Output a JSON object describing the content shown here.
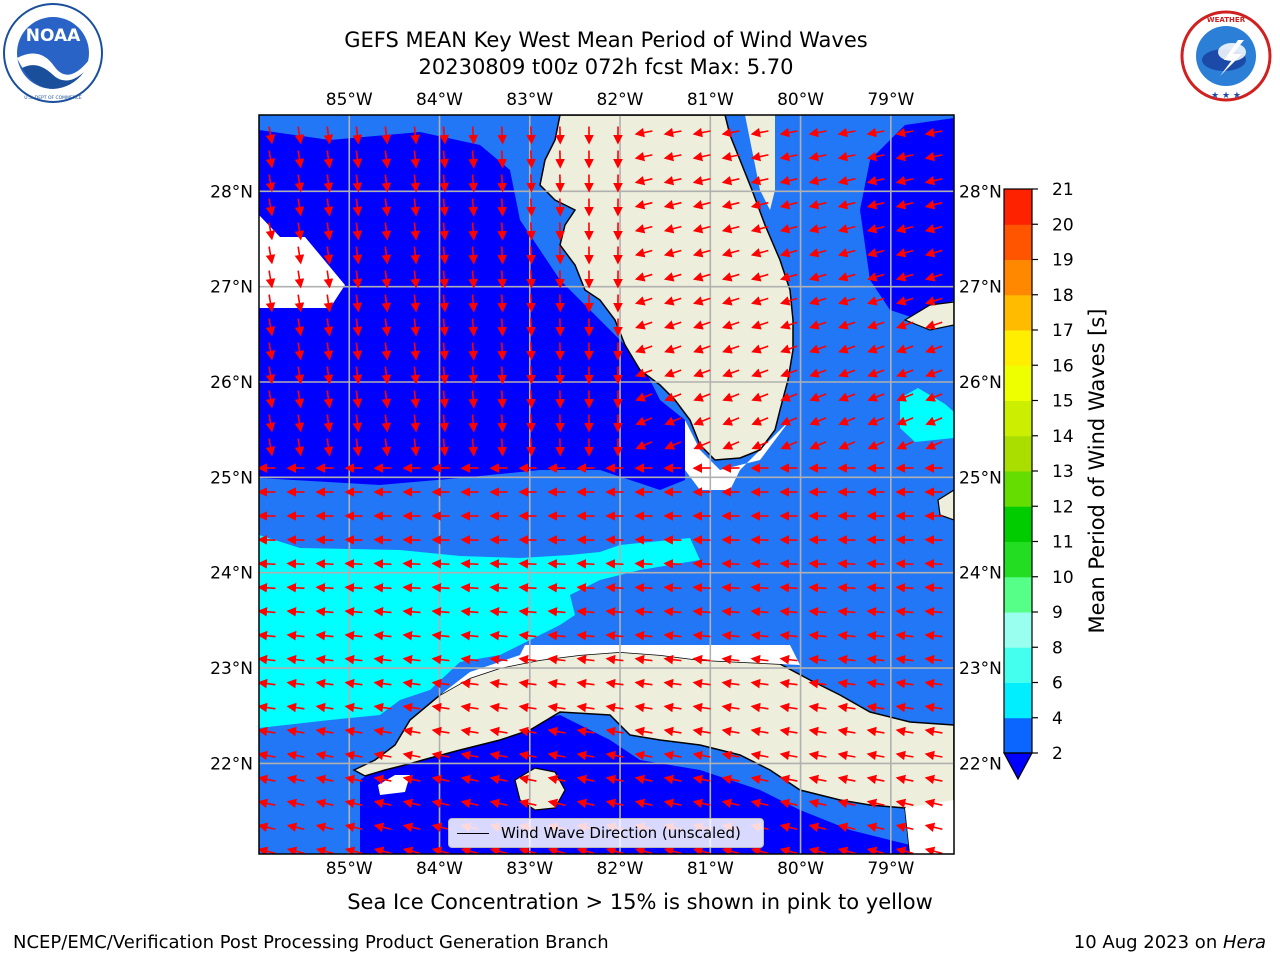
{
  "title": {
    "line1": "GEFS MEAN Key West Mean Period of Wind Waves",
    "line2": "20230809 t00z 072h fcst   Max: 5.70"
  },
  "logos": {
    "left": {
      "name": "NOAA",
      "ring_text": "NATIONAL OCEANIC AND ATMOSPHERIC ADMINISTRATION · U.S. DEPARTMENT OF COMMERCE"
    },
    "right": {
      "name": "NATIONAL WEATHER SERVICE"
    }
  },
  "map": {
    "lon_labels": [
      "85°W",
      "84°W",
      "83°W",
      "82°W",
      "81°W",
      "80°W",
      "79°W"
    ],
    "lat_labels": [
      "28°N",
      "27°N",
      "26°N",
      "25°N",
      "24°N",
      "23°N",
      "22°N"
    ],
    "lon_range": [
      -86.0,
      -78.3
    ],
    "lat_range": [
      21.05,
      28.8
    ],
    "colors": {
      "land": "#eeeedd",
      "blue_dark": "#0000ff",
      "blue_mid": "#2277f7",
      "cyan": "#00ffff",
      "grid": "#b0b0b0",
      "arrow": "#ff0000"
    },
    "legend_label": "Wind Wave Direction (unscaled)"
  },
  "colorbar": {
    "label": "Mean Period of Wind Waves [s]",
    "ticks": [
      "2",
      "4",
      "6",
      "8",
      "9",
      "10",
      "11",
      "12",
      "13",
      "14",
      "15",
      "16",
      "17",
      "18",
      "19",
      "20",
      "21"
    ],
    "colors": [
      "#0a66ff",
      "#00eeff",
      "#44ffee",
      "#99ffee",
      "#55ff88",
      "#22dd22",
      "#00cc00",
      "#66dd00",
      "#aadd00",
      "#ccee00",
      "#eeff00",
      "#ffee00",
      "#ffbb00",
      "#ff8800",
      "#ff5500",
      "#ff2200"
    ]
  },
  "chart_data": {
    "type": "heatmap",
    "title": "GEFS MEAN Key West Mean Period of Wind Waves",
    "subtitle": "20230809 t00z 072h fcst   Max: 5.70",
    "colorbar_range": [
      2,
      21
    ],
    "max_value": 5.7,
    "xlim": [
      -86.0,
      -78.3
    ],
    "ylim": [
      21.05,
      28.8
    ]
  },
  "subtitle_note": "Sea Ice Concentration > 15% is shown in pink to yellow",
  "footer": {
    "left": "NCEP/EMC/Verification Post Processing Product Generation Branch",
    "right_date": "10 Aug 2023 on ",
    "right_host": "Hera"
  }
}
